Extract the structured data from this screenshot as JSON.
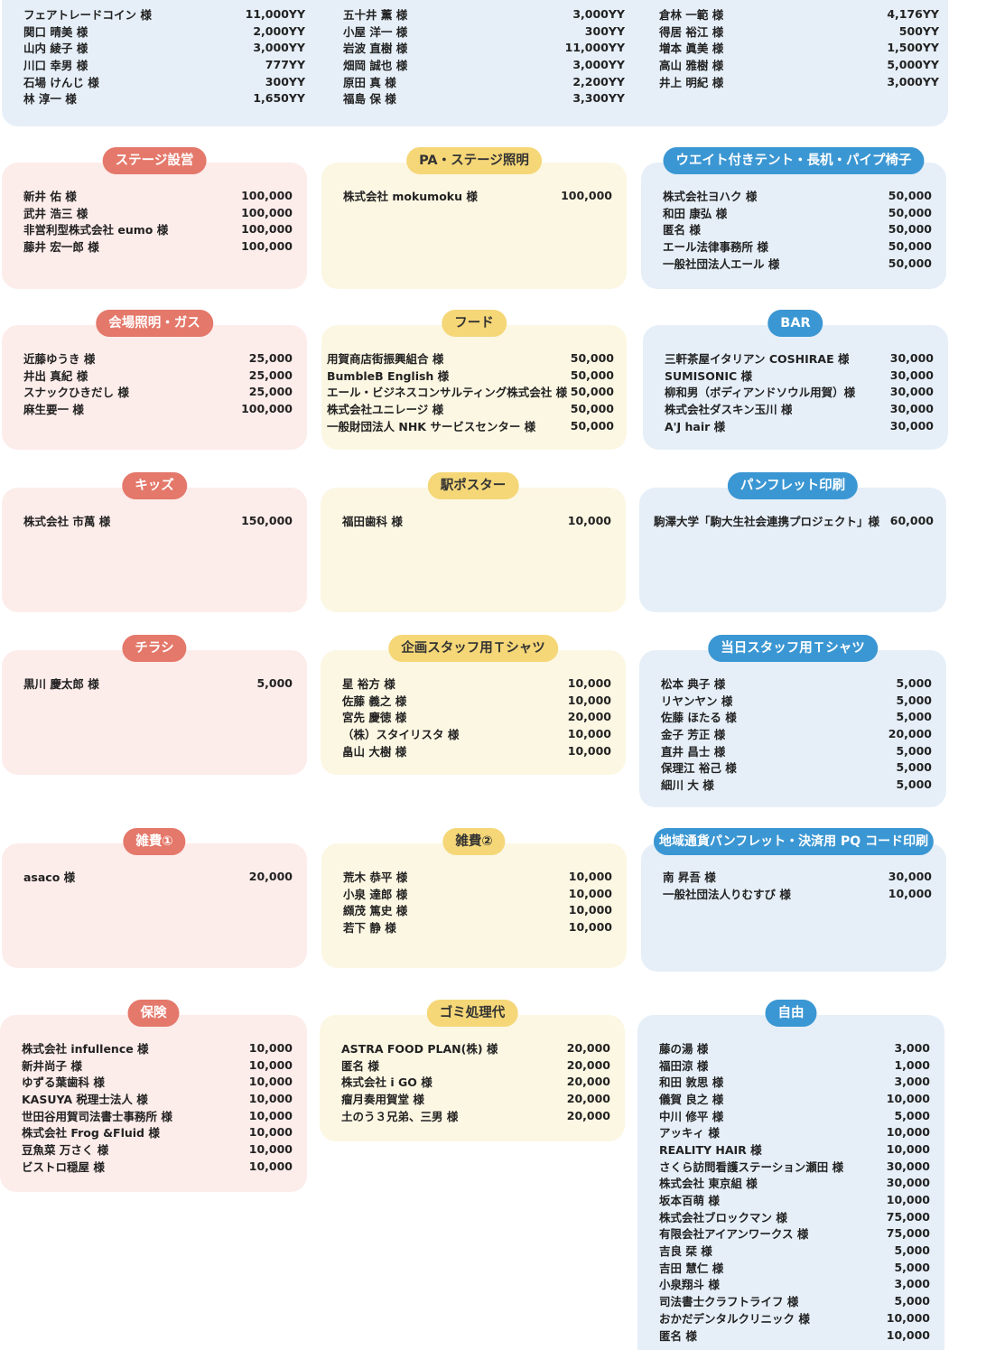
{
  "top": {
    "columns": [
      [
        {
          "name": "フェアトレードコイン 様",
          "amount": "11,000YY"
        },
        {
          "name": "関口 晴美 様",
          "amount": "2,000YY"
        },
        {
          "name": "山内 綾子 様",
          "amount": "3,000YY"
        },
        {
          "name": "川口 幸男 様",
          "amount": "777YY"
        },
        {
          "name": "石場 けんじ 様",
          "amount": "300YY"
        },
        {
          "name": "林 淳一 様",
          "amount": "1,650YY"
        }
      ],
      [
        {
          "name": "五十井 薫 様",
          "amount": "3,000YY"
        },
        {
          "name": "小屋 洋一 様",
          "amount": "300YY"
        },
        {
          "name": "岩波 直樹 様",
          "amount": "11,000YY"
        },
        {
          "name": "畑岡 誠也 様",
          "amount": "3,000YY"
        },
        {
          "name": "原田 真 様",
          "amount": "2,200YY"
        },
        {
          "name": "福島 保 様",
          "amount": "3,300YY"
        }
      ],
      [
        {
          "name": "倉林 一範 様",
          "amount": "4,176YY"
        },
        {
          "name": "得居 裕江 様",
          "amount": "500YY"
        },
        {
          "name": "増本 眞美 様",
          "amount": "1,500YY"
        },
        {
          "name": "高山 雅樹 様",
          "amount": "5,000YY"
        },
        {
          "name": "井上 明紀 様",
          "amount": "3,000YY"
        }
      ]
    ]
  },
  "cards": [
    {
      "title": "ステージ設営",
      "color": "pink",
      "entries": [
        {
          "name": "新井 佑 様",
          "amount": "100,000"
        },
        {
          "name": "武井 浩三 様",
          "amount": "100,000"
        },
        {
          "name": "非営利型株式会社 eumo 様",
          "amount": "100,000"
        },
        {
          "name": "藤井 宏一郎 様",
          "amount": "100,000"
        }
      ]
    },
    {
      "title": "PA・ステージ照明",
      "color": "yellow",
      "entries": [
        {
          "name": "株式会社 mokumoku 様",
          "amount": "100,000"
        }
      ]
    },
    {
      "title": "ウエイト付きテント・長机・パイプ椅子",
      "color": "blue",
      "entries": [
        {
          "name": "株式会社ヨハク 様",
          "amount": "50,000"
        },
        {
          "name": "和田 康弘 様",
          "amount": "50,000"
        },
        {
          "name": "匿名 様",
          "amount": "50,000"
        },
        {
          "name": "エール法律事務所 様",
          "amount": "50,000"
        },
        {
          "name": "一般社団法人エール 様",
          "amount": "50,000"
        }
      ]
    },
    {
      "title": "会場照明・ガス",
      "color": "pink",
      "entries": [
        {
          "name": "近藤ゆうき 様",
          "amount": "25,000"
        },
        {
          "name": "井出 真紀 様",
          "amount": "25,000"
        },
        {
          "name": "スナックひきだし 様",
          "amount": "25,000"
        },
        {
          "name": "麻生要一 様",
          "amount": "100,000"
        }
      ]
    },
    {
      "title": "フード",
      "color": "yellow",
      "entries": [
        {
          "name": "用賀商店街振興組合 様",
          "amount": "50,000"
        },
        {
          "name": "BumbleB English 様",
          "amount": "50,000"
        },
        {
          "name": "エール・ビジネスコンサルティング株式会社 様",
          "amount": "50,000"
        },
        {
          "name": "株式会社ユニレージ 様",
          "amount": "50,000"
        },
        {
          "name": "一般財団法人 NHK サービスセンター 様",
          "amount": "50,000"
        }
      ]
    },
    {
      "title": "BAR",
      "color": "blue",
      "entries": [
        {
          "name": "三軒茶屋イタリアン COSHIRAE 様",
          "amount": "30,000"
        },
        {
          "name": "SUMISONIC 様",
          "amount": "30,000"
        },
        {
          "name": "柳和男（ボディアンドソウル用賀）様",
          "amount": "30,000"
        },
        {
          "name": "株式会社ダスキン玉川 様",
          "amount": "30,000"
        },
        {
          "name": "A'J hair 様",
          "amount": "30,000"
        }
      ]
    },
    {
      "title": "キッズ",
      "color": "pink",
      "entries": [
        {
          "name": "株式会社 市萬 様",
          "amount": "150,000"
        }
      ]
    },
    {
      "title": "駅ポスター",
      "color": "yellow",
      "entries": [
        {
          "name": "福田歯科 様",
          "amount": "10,000"
        }
      ]
    },
    {
      "title": "パンフレット印刷",
      "color": "blue",
      "entries": [
        {
          "name": "駒澤大学「駒大生社会連携プロジェクト」様",
          "amount": "60,000"
        }
      ]
    },
    {
      "title": "チラシ",
      "color": "pink",
      "entries": [
        {
          "name": "黒川 慶太郎 様",
          "amount": "5,000"
        }
      ]
    },
    {
      "title": "企画スタッフ用Ｔシャツ",
      "color": "yellow",
      "entries": [
        {
          "name": "星 裕方 様",
          "amount": "10,000"
        },
        {
          "name": "佐藤 義之 様",
          "amount": "10,000"
        },
        {
          "name": "宮先 慶徳 様",
          "amount": "20,000"
        },
        {
          "name": "（株）スタイリスタ 様",
          "amount": "10,000"
        },
        {
          "name": "畠山 大樹 様",
          "amount": "10,000"
        }
      ]
    },
    {
      "title": "当日スタッフ用Ｔシャツ",
      "color": "blue",
      "entries": [
        {
          "name": "松本 典子 様",
          "amount": "5,000"
        },
        {
          "name": "リヤンヤン 様",
          "amount": "5,000"
        },
        {
          "name": "佐藤 ほたる 様",
          "amount": "5,000"
        },
        {
          "name": "金子 芳正 様",
          "amount": "20,000"
        },
        {
          "name": "直井 昌士 様",
          "amount": "5,000"
        },
        {
          "name": "保理江 裕己 様",
          "amount": "5,000"
        },
        {
          "name": "細川 大 様",
          "amount": "5,000"
        }
      ]
    },
    {
      "title": "雑費①",
      "color": "pink",
      "entries": [
        {
          "name": "asaco 様",
          "amount": "20,000"
        }
      ]
    },
    {
      "title": "雑費②",
      "color": "yellow",
      "entries": [
        {
          "name": "荒木 恭平 様",
          "amount": "10,000"
        },
        {
          "name": "小泉 達郎 様",
          "amount": "10,000"
        },
        {
          "name": "纐茂 篤史 様",
          "amount": "10,000"
        },
        {
          "name": "若下 静 様",
          "amount": "10,000"
        }
      ]
    },
    {
      "title": "地域通貨パンフレット・決済用 PQ コード印刷",
      "color": "blue",
      "entries": [
        {
          "name": "南 昇吾 様",
          "amount": "30,000"
        },
        {
          "name": "一般社団法人りむすび 様",
          "amount": "10,000"
        }
      ]
    },
    {
      "title": "保険",
      "color": "pink",
      "entries": [
        {
          "name": "株式会社 infullence 様",
          "amount": "10,000"
        },
        {
          "name": "新井尚子 様",
          "amount": "10,000"
        },
        {
          "name": "ゆずる葉歯科 様",
          "amount": "10,000"
        },
        {
          "name": "KASUYA 税理士法人 様",
          "amount": "10,000"
        },
        {
          "name": "世田谷用賀司法書士事務所 様",
          "amount": "10,000"
        },
        {
          "name": "株式会社 Frog &Fluid 様",
          "amount": "10,000"
        },
        {
          "name": "豆魚菜 万さく 様",
          "amount": "10,000"
        },
        {
          "name": "ビストロ穏屋 様",
          "amount": "10,000"
        }
      ]
    },
    {
      "title": "ゴミ処理代",
      "color": "yellow",
      "entries": [
        {
          "name": "ASTRA FOOD PLAN(株) 様",
          "amount": "20,000"
        },
        {
          "name": "匿名 様",
          "amount": "20,000"
        },
        {
          "name": "株式会社 i GO 様",
          "amount": "20,000"
        },
        {
          "name": "瘤月奏用賀堂 様",
          "amount": "20,000"
        },
        {
          "name": "土のう３兄弟、三男 様",
          "amount": "20,000"
        }
      ]
    },
    {
      "title": "自由",
      "color": "blue",
      "entries": [
        {
          "name": "藤の湯 様",
          "amount": "3,000"
        },
        {
          "name": "福田涼 様",
          "amount": "1,000"
        },
        {
          "name": "和田 敦思 様",
          "amount": "3,000"
        },
        {
          "name": "儀賀 良之 様",
          "amount": "10,000"
        },
        {
          "name": "中川 修平 様",
          "amount": "5,000"
        },
        {
          "name": "アッキィ 様",
          "amount": "10,000"
        },
        {
          "name": "REALITY HAIR 様",
          "amount": "10,000"
        },
        {
          "name": "さくら訪問看護ステーション瀬田 様",
          "amount": "30,000"
        },
        {
          "name": "株式会社 東京組 様",
          "amount": "30,000"
        },
        {
          "name": "坂本百萌 様",
          "amount": "10,000"
        },
        {
          "name": "株式会社ブロックマン 様",
          "amount": "75,000"
        },
        {
          "name": "有限会社アイアンワークス 様",
          "amount": "75,000"
        },
        {
          "name": "吉良 栞 様",
          "amount": "5,000"
        },
        {
          "name": "吉田 慧仁 様",
          "amount": "5,000"
        },
        {
          "name": "小泉翔斗 様",
          "amount": "3,000"
        },
        {
          "name": "司法書士クラフトライフ 様",
          "amount": "5,000"
        },
        {
          "name": "おかだデンタルクリニック 様",
          "amount": "10,000"
        },
        {
          "name": "匿名 様",
          "amount": "10,000"
        }
      ]
    }
  ]
}
